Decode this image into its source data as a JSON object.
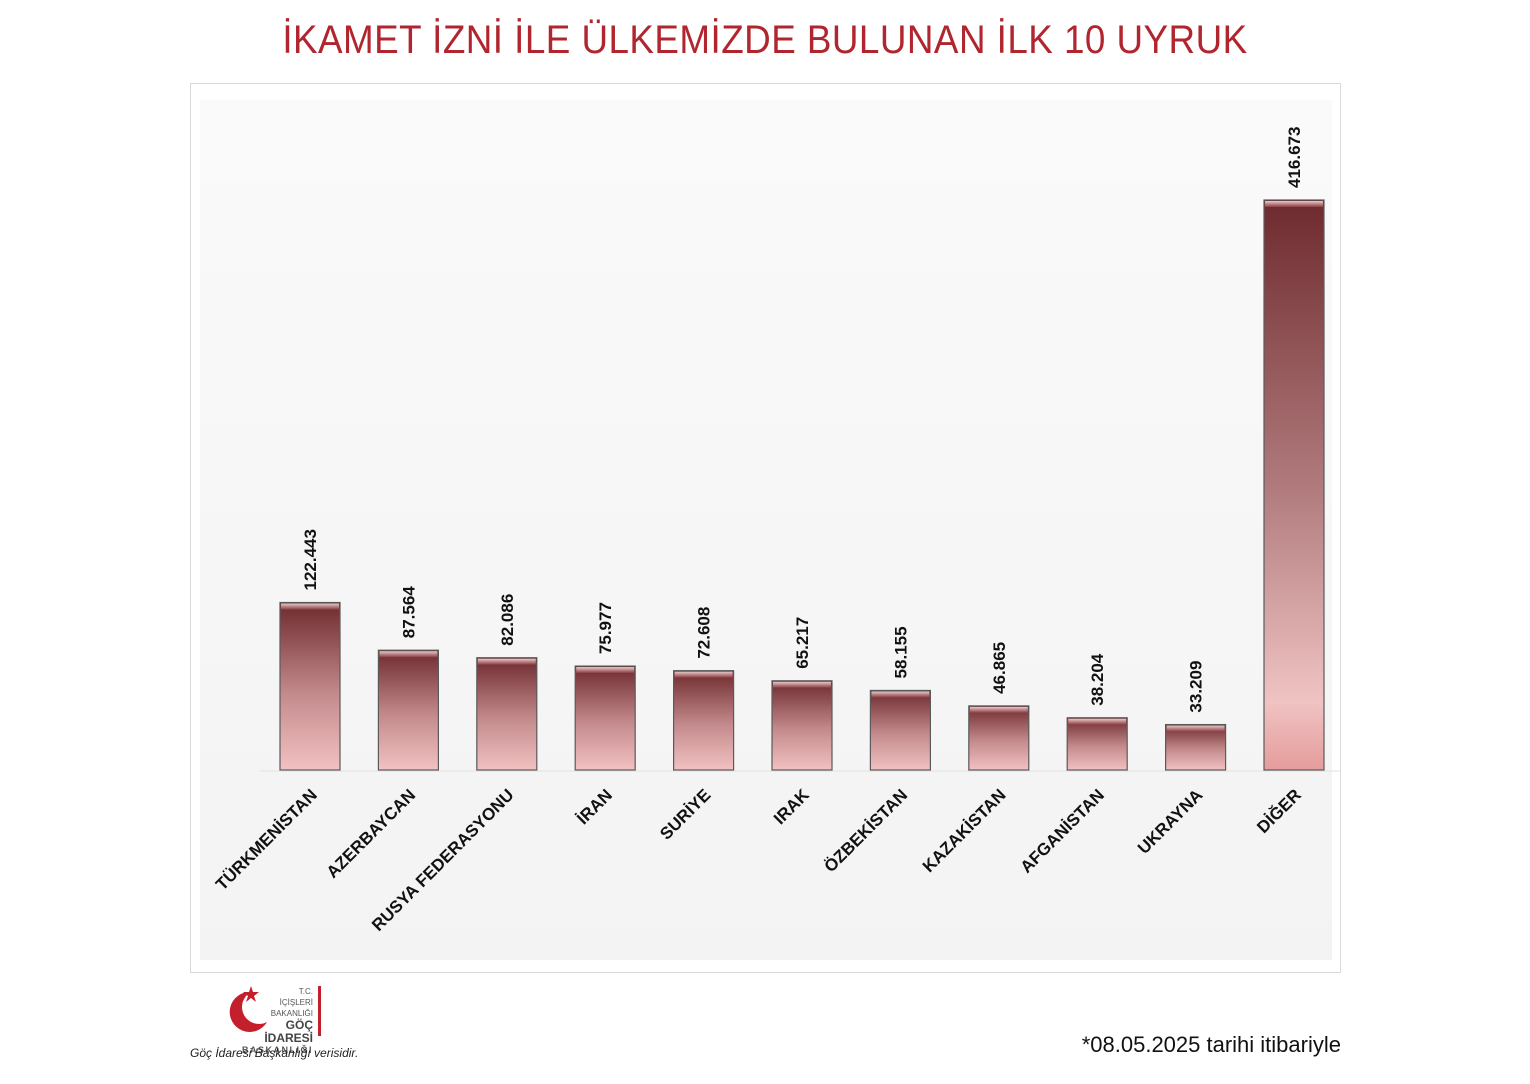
{
  "title": "İKAMET İZNİ İLE ÜLKEMİZDE BULUNAN İLK 10 UYRUK",
  "footnote": "*08.05.2025 tarihi itibariyle",
  "logo": {
    "line1": "T.C.",
    "line2": "İÇİŞLERİ BAKANLIĞI",
    "line3": "GÖÇ İDARESİ",
    "line4": "BAŞKANLIĞI",
    "source": "Göç İdaresi Başkanlığı verisidir."
  },
  "colors": {
    "title": "#b1252f",
    "bar_top": "#6e2a2e",
    "bar_bottom": "#f2c1c1",
    "logo_red": "#c4202b"
  },
  "chart_data": {
    "type": "bar",
    "title": "İKAMET İZNİ İLE ÜLKEMİZDE BULUNAN İLK 10 UYRUK",
    "categories": [
      "TÜRKMENİSTAN",
      "AZERBAYCAN",
      "RUSYA FEDERASYONU",
      "İRAN",
      "SURİYE",
      "IRAK",
      "ÖZBEKİSTAN",
      "KAZAKİSTAN",
      "AFGANİSTAN",
      "UKRAYNA",
      "DİĞER"
    ],
    "values": [
      122443,
      87564,
      82086,
      75977,
      72608,
      65217,
      58155,
      46865,
      38204,
      33209,
      416673
    ],
    "value_labels": [
      "122.443",
      "87.564",
      "82.086",
      "75.977",
      "72.608",
      "65.217",
      "58.155",
      "46.865",
      "38.204",
      "33.209",
      "416.673"
    ],
    "ylim": [
      0,
      416673
    ],
    "xlabel": "",
    "ylabel": "",
    "grid": false,
    "legend": "none"
  }
}
